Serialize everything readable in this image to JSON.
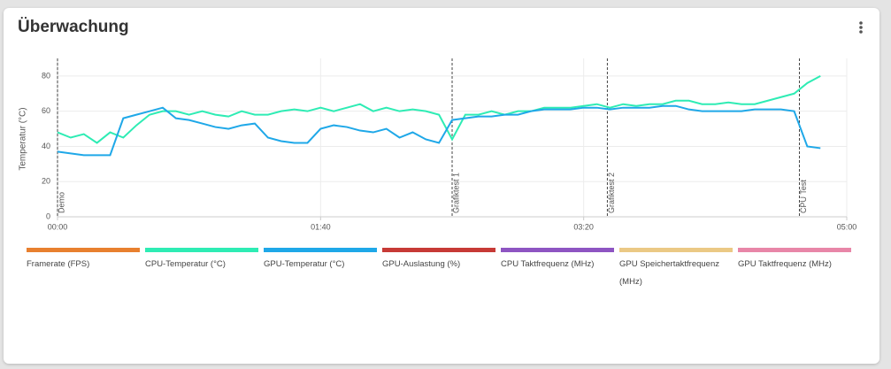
{
  "title": "Überwachung",
  "chart_data": {
    "type": "line",
    "y_label": "Temperatur (°C)",
    "x": [
      0,
      5,
      10,
      15,
      20,
      25,
      30,
      35,
      40,
      45,
      50,
      55,
      60,
      65,
      70,
      75,
      80,
      85,
      90,
      95,
      100,
      105,
      110,
      115,
      120,
      125,
      130,
      135,
      140,
      145,
      150,
      155,
      160,
      165,
      170,
      175,
      180,
      185,
      190,
      195,
      200,
      205,
      210,
      215,
      220,
      225,
      230,
      235,
      240,
      245,
      250,
      255,
      260,
      265,
      270,
      275,
      280,
      285,
      290
    ],
    "xlim": [
      0,
      300
    ],
    "xticks": [
      {
        "value": 0,
        "label": "00:00"
      },
      {
        "value": 100,
        "label": "01:40"
      },
      {
        "value": 200,
        "label": "03:20"
      },
      {
        "value": 300,
        "label": "05:00"
      }
    ],
    "ylim": [
      0,
      90
    ],
    "yticks": [
      0,
      20,
      40,
      60,
      80
    ],
    "grid": true,
    "markers": [
      {
        "label": "Demo",
        "x": 0
      },
      {
        "label": "Grafiktest 1",
        "x": 150
      },
      {
        "label": "Grafiktest 2",
        "x": 209
      },
      {
        "label": "CPU Test",
        "x": 282
      }
    ],
    "series": [
      {
        "name": "Framerate (FPS)",
        "color": "#e8802f",
        "values": [
          null,
          null,
          null,
          null,
          null,
          null,
          null,
          null,
          null,
          null,
          null,
          null,
          null,
          null,
          null,
          null,
          null,
          null,
          null,
          null,
          null,
          null,
          null,
          null,
          null,
          null,
          null,
          null,
          null,
          null,
          null,
          null,
          null,
          null,
          null,
          null,
          null,
          null,
          null,
          null,
          null,
          null,
          null,
          null,
          null,
          null,
          null,
          null,
          null,
          null,
          null,
          null,
          null,
          null,
          null,
          null,
          null,
          null,
          null
        ]
      },
      {
        "name": "CPU-Temperatur (°C)",
        "color": "#2eecb4",
        "values": [
          48,
          45,
          47,
          42,
          48,
          45,
          52,
          58,
          60,
          60,
          58,
          60,
          58,
          57,
          60,
          58,
          58,
          60,
          61,
          60,
          62,
          60,
          62,
          64,
          60,
          62,
          60,
          61,
          60,
          58,
          44,
          58,
          58,
          60,
          58,
          60,
          60,
          62,
          62,
          62,
          63,
          64,
          62,
          64,
          63,
          64,
          64,
          66,
          66,
          64,
          64,
          65,
          64,
          64,
          66,
          68,
          70,
          76,
          80
        ]
      },
      {
        "name": "GPU-Temperatur (°C)",
        "color": "#1fa8e8",
        "values": [
          37,
          36,
          35,
          35,
          35,
          56,
          58,
          60,
          62,
          56,
          55,
          53,
          51,
          50,
          52,
          53,
          45,
          43,
          42,
          42,
          50,
          52,
          51,
          49,
          48,
          50,
          45,
          48,
          44,
          42,
          55,
          56,
          57,
          57,
          58,
          58,
          60,
          61,
          61,
          61,
          62,
          62,
          61,
          62,
          62,
          62,
          63,
          63,
          61,
          60,
          60,
          60,
          60,
          61,
          61,
          61,
          60,
          40,
          39
        ]
      },
      {
        "name": "GPU-Auslastung (%)",
        "color": "#c73a36",
        "values": [
          null,
          null,
          null,
          null,
          null,
          null,
          null,
          null,
          null,
          null,
          null,
          null,
          null,
          null,
          null,
          null,
          null,
          null,
          null,
          null,
          null,
          null,
          null,
          null,
          null,
          null,
          null,
          null,
          null,
          null,
          null,
          null,
          null,
          null,
          null,
          null,
          null,
          null,
          null,
          null,
          null,
          null,
          null,
          null,
          null,
          null,
          null,
          null,
          null,
          null,
          null,
          null,
          null,
          null,
          null,
          null,
          null,
          null,
          null
        ]
      },
      {
        "name": "CPU Taktfrequenz (MHz)",
        "color": "#8e55c2",
        "values": [
          null,
          null,
          null,
          null,
          null,
          null,
          null,
          null,
          null,
          null,
          null,
          null,
          null,
          null,
          null,
          null,
          null,
          null,
          null,
          null,
          null,
          null,
          null,
          null,
          null,
          null,
          null,
          null,
          null,
          null,
          null,
          null,
          null,
          null,
          null,
          null,
          null,
          null,
          null,
          null,
          null,
          null,
          null,
          null,
          null,
          null,
          null,
          null,
          null,
          null,
          null,
          null,
          null,
          null,
          null,
          null,
          null,
          null,
          null
        ]
      },
      {
        "name": "GPU Speichertaktfrequenz (MHz)",
        "color": "#ebc985",
        "values": [
          null,
          null,
          null,
          null,
          null,
          null,
          null,
          null,
          null,
          null,
          null,
          null,
          null,
          null,
          null,
          null,
          null,
          null,
          null,
          null,
          null,
          null,
          null,
          null,
          null,
          null,
          null,
          null,
          null,
          null,
          null,
          null,
          null,
          null,
          null,
          null,
          null,
          null,
          null,
          null,
          null,
          null,
          null,
          null,
          null,
          null,
          null,
          null,
          null,
          null,
          null,
          null,
          null,
          null,
          null,
          null,
          null,
          null,
          null
        ]
      },
      {
        "name": "GPU Taktfrequenz (MHz)",
        "color": "#e886a8",
        "values": [
          null,
          null,
          null,
          null,
          null,
          null,
          null,
          null,
          null,
          null,
          null,
          null,
          null,
          null,
          null,
          null,
          null,
          null,
          null,
          null,
          null,
          null,
          null,
          null,
          null,
          null,
          null,
          null,
          null,
          null,
          null,
          null,
          null,
          null,
          null,
          null,
          null,
          null,
          null,
          null,
          null,
          null,
          null,
          null,
          null,
          null,
          null,
          null,
          null,
          null,
          null,
          null,
          null,
          null,
          null,
          null,
          null,
          null,
          null
        ]
      }
    ]
  }
}
